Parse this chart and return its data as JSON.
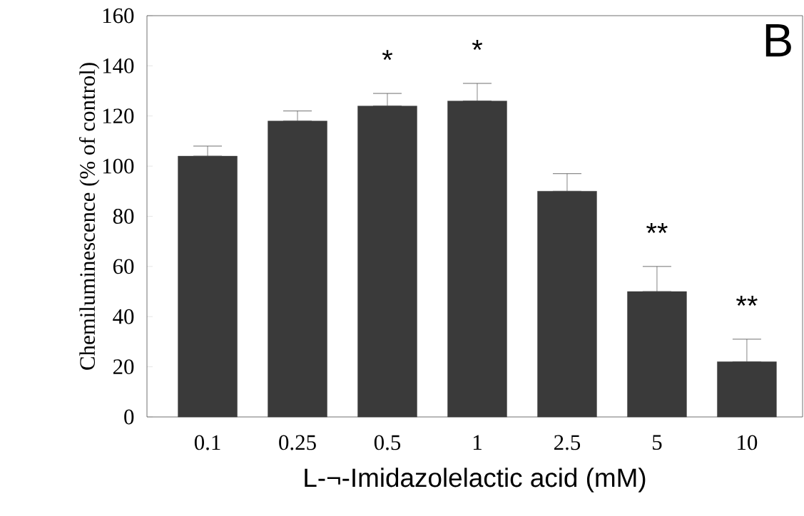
{
  "chart_data": {
    "type": "bar",
    "categories": [
      "0.1",
      "0.25",
      "0.5",
      "1",
      "2.5",
      "5",
      "10"
    ],
    "values": [
      104,
      118,
      124,
      126,
      90,
      50,
      22
    ],
    "errors": [
      [
        104,
        108
      ],
      [
        118,
        122
      ],
      [
        124,
        129
      ],
      [
        126,
        133
      ],
      [
        90,
        97
      ],
      [
        50,
        60
      ],
      [
        22,
        31
      ]
    ],
    "color": "#3a3a3a",
    "ylim": [
      0,
      160
    ],
    "yticks": [
      0,
      20,
      40,
      60,
      80,
      100,
      120,
      140,
      160
    ],
    "xlabel": "L-¬-Imidazolelactic acid (mM)",
    "ylabel": "Chemiluminescence (% of control)",
    "annotations": [
      "B",
      {
        "text": "*",
        "x": "0.5",
        "y": 129
      },
      {
        "text": "*",
        "x": "1",
        "y": 133
      },
      {
        "text": "**",
        "x": "5",
        "y": 60
      },
      {
        "text": "**",
        "x": "10",
        "y": 31
      }
    ]
  }
}
